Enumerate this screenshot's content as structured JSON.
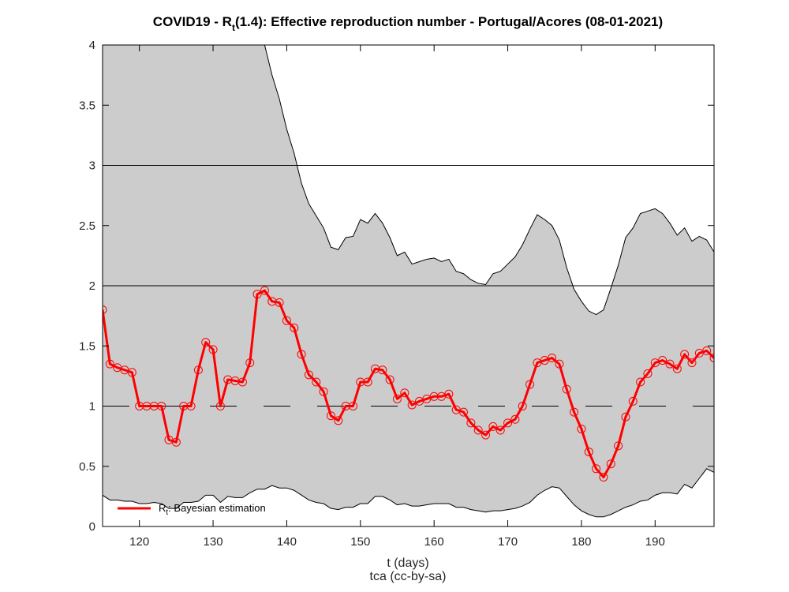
{
  "chart_data": {
    "type": "line",
    "title": {
      "prefix": "COVID19 - R",
      "subscript": "t",
      "suffix": "(1.4): Effective reproduction number - Portugal/Acores (08-01-2021)"
    },
    "xlabel": "t (days)",
    "credit": "tca (cc-by-sa)",
    "xlim": [
      115,
      198
    ],
    "ylim": [
      0,
      4
    ],
    "xticks": [
      120,
      130,
      140,
      150,
      160,
      170,
      180,
      190
    ],
    "yticks": [
      0,
      0.5,
      1,
      1.5,
      2,
      2.5,
      3,
      3.5,
      4
    ],
    "ytick_labels": [
      "0",
      "0.5",
      "1",
      "1.5",
      "2",
      "2.5",
      "3",
      "3.5",
      "4"
    ],
    "reference_lines": [
      {
        "y": 1,
        "style": "dashed"
      },
      {
        "y": 2,
        "style": "solid"
      },
      {
        "y": 3,
        "style": "solid"
      }
    ],
    "legend": {
      "position": "bottom-left",
      "entries": [
        {
          "prefix": "R",
          "subscript": "t",
          "suffix": ": Bayesian estimation",
          "color": "#ff0000"
        }
      ]
    },
    "colors": {
      "series": "#ff0000",
      "band": "#cccccc",
      "band_edge": "#000000"
    },
    "series": [
      {
        "x": [
          115,
          116,
          117,
          118,
          119,
          120,
          121,
          122,
          123,
          124,
          125,
          126,
          127,
          128,
          129,
          130,
          131,
          132,
          133,
          134,
          135,
          136,
          137,
          138,
          139,
          140,
          141,
          142,
          143,
          144,
          145,
          146,
          147,
          148,
          149,
          150,
          151,
          152,
          153,
          154,
          155,
          156,
          157,
          158,
          159,
          160,
          161,
          162,
          163,
          164,
          165,
          166,
          167,
          168,
          169,
          170,
          171,
          172,
          173,
          174,
          175,
          176,
          177,
          178,
          179,
          180,
          181,
          182,
          183,
          184,
          185,
          186,
          187,
          188,
          189,
          190,
          191,
          192,
          193,
          194,
          195,
          196,
          197,
          198
        ],
        "values": [
          1.8,
          1.35,
          1.32,
          1.3,
          1.28,
          1.0,
          1.0,
          1.0,
          1.0,
          0.72,
          0.7,
          1.0,
          1.0,
          1.3,
          1.53,
          1.47,
          1.0,
          1.22,
          1.21,
          1.2,
          1.36,
          1.93,
          1.96,
          1.87,
          1.86,
          1.71,
          1.65,
          1.43,
          1.26,
          1.2,
          1.12,
          0.92,
          0.88,
          1.0,
          1.0,
          1.2,
          1.2,
          1.31,
          1.3,
          1.22,
          1.06,
          1.11,
          1.01,
          1.04,
          1.06,
          1.08,
          1.08,
          1.1,
          0.97,
          0.95,
          0.86,
          0.8,
          0.76,
          0.83,
          0.8,
          0.86,
          0.89,
          1.0,
          1.18,
          1.36,
          1.38,
          1.4,
          1.35,
          1.14,
          0.95,
          0.81,
          0.62,
          0.48,
          0.41,
          0.52,
          0.67,
          0.91,
          1.04,
          1.2,
          1.27,
          1.36,
          1.38,
          1.35,
          1.31,
          1.43,
          1.36,
          1.44,
          1.46,
          1.4
        ]
      }
    ],
    "band": {
      "x": [
        115,
        116,
        117,
        118,
        119,
        120,
        121,
        122,
        123,
        124,
        125,
        126,
        127,
        128,
        129,
        130,
        131,
        132,
        133,
        134,
        135,
        136,
        137,
        138,
        139,
        140,
        141,
        142,
        143,
        144,
        145,
        146,
        147,
        148,
        149,
        150,
        151,
        152,
        153,
        154,
        155,
        156,
        157,
        158,
        159,
        160,
        161,
        162,
        163,
        164,
        165,
        166,
        167,
        168,
        169,
        170,
        171,
        172,
        173,
        174,
        175,
        176,
        177,
        178,
        179,
        180,
        181,
        182,
        183,
        184,
        185,
        186,
        187,
        188,
        189,
        190,
        191,
        192,
        193,
        194,
        195,
        196,
        197,
        198
      ],
      "upper": [
        4.0,
        4.0,
        4.0,
        4.0,
        4.0,
        4.0,
        4.0,
        4.0,
        4.0,
        4.0,
        4.0,
        4.0,
        4.0,
        4.0,
        4.0,
        4.0,
        4.0,
        4.0,
        4.0,
        4.0,
        4.0,
        4.0,
        4.0,
        3.75,
        3.55,
        3.3,
        3.1,
        2.85,
        2.68,
        2.58,
        2.48,
        2.32,
        2.3,
        2.4,
        2.41,
        2.55,
        2.52,
        2.6,
        2.52,
        2.4,
        2.25,
        2.28,
        2.18,
        2.2,
        2.22,
        2.23,
        2.2,
        2.22,
        2.12,
        2.1,
        2.05,
        2.02,
        2.01,
        2.1,
        2.12,
        2.18,
        2.24,
        2.34,
        2.47,
        2.59,
        2.55,
        2.5,
        2.38,
        2.15,
        1.97,
        1.87,
        1.79,
        1.76,
        1.8,
        1.98,
        2.17,
        2.4,
        2.48,
        2.6,
        2.62,
        2.64,
        2.6,
        2.52,
        2.42,
        2.48,
        2.37,
        2.41,
        2.38,
        2.28
      ],
      "lower": [
        0.26,
        0.22,
        0.22,
        0.21,
        0.21,
        0.19,
        0.19,
        0.2,
        0.19,
        0.15,
        0.15,
        0.2,
        0.2,
        0.21,
        0.26,
        0.26,
        0.2,
        0.25,
        0.24,
        0.24,
        0.28,
        0.31,
        0.31,
        0.34,
        0.32,
        0.32,
        0.3,
        0.26,
        0.22,
        0.2,
        0.19,
        0.15,
        0.14,
        0.16,
        0.16,
        0.19,
        0.19,
        0.25,
        0.25,
        0.22,
        0.18,
        0.19,
        0.17,
        0.17,
        0.18,
        0.19,
        0.19,
        0.19,
        0.16,
        0.16,
        0.14,
        0.13,
        0.12,
        0.13,
        0.13,
        0.14,
        0.15,
        0.17,
        0.2,
        0.26,
        0.3,
        0.33,
        0.32,
        0.25,
        0.18,
        0.13,
        0.1,
        0.08,
        0.08,
        0.1,
        0.13,
        0.16,
        0.18,
        0.21,
        0.22,
        0.26,
        0.28,
        0.28,
        0.27,
        0.35,
        0.32,
        0.4,
        0.48,
        0.45
      ]
    }
  }
}
